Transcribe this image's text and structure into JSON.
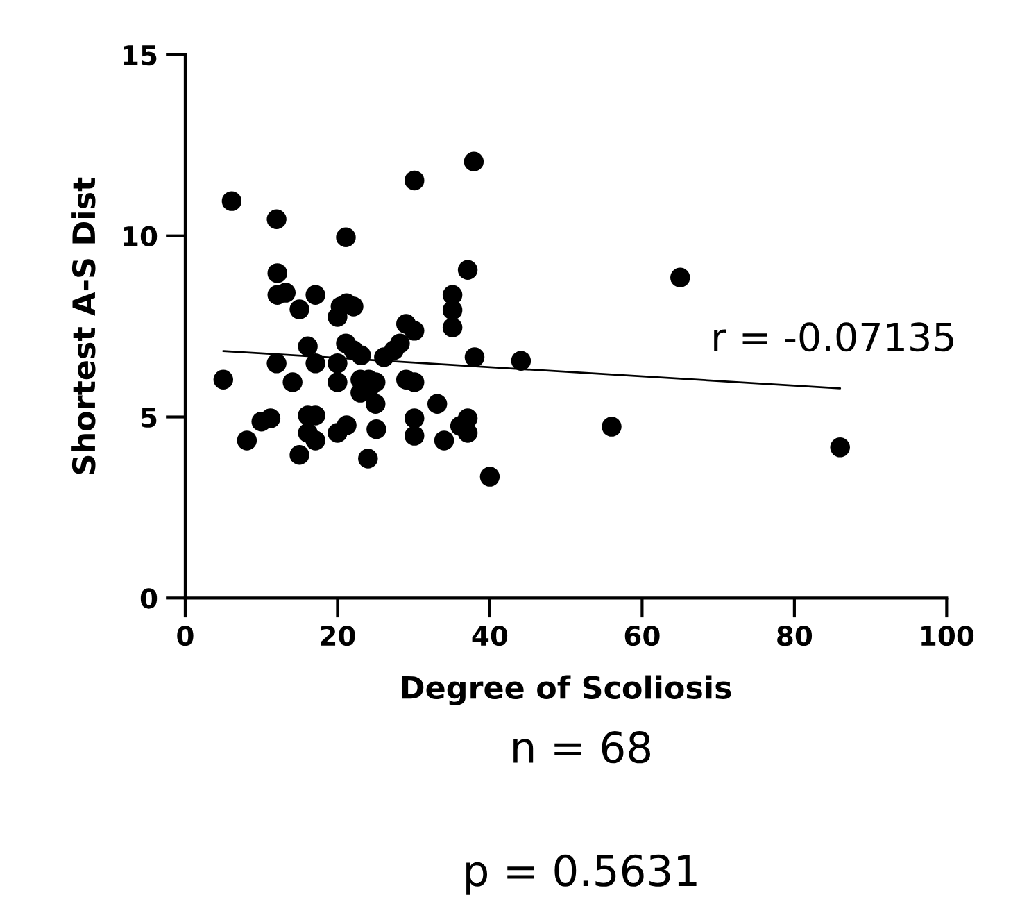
{
  "chart_data": {
    "type": "scatter",
    "xlabel": "Degree of Scoliosis",
    "ylabel": "Shortest A-S Dist",
    "xlim": [
      0,
      100
    ],
    "ylim": [
      0,
      15
    ],
    "xticks": [
      0,
      20,
      40,
      60,
      80,
      100
    ],
    "yticks": [
      0,
      5,
      10,
      15
    ],
    "grid": false,
    "marker": "circle",
    "series": [
      {
        "color": "#000000",
        "x": [
          5,
          6.1,
          8.1,
          10,
          11.2,
          12,
          12.1,
          12.1,
          13.2,
          12,
          14.1,
          15,
          15,
          16.1,
          17.1,
          17.1,
          16.1,
          17.1,
          16.1,
          17.1,
          20,
          20,
          20,
          20.4,
          21.2,
          22.1,
          21.1,
          21.1,
          22.1,
          23.1,
          20,
          21.2,
          23,
          23,
          24.1,
          24.1,
          25,
          25,
          25.1,
          24,
          26.1,
          27.4,
          28.2,
          29,
          30.1,
          29,
          30.1,
          30.1,
          30.1,
          30.1,
          33.1,
          34,
          35.1,
          35.1,
          35.1,
          37.1,
          36.1,
          37.1,
          37.1,
          37.9,
          38,
          40,
          44.1,
          56,
          65,
          86
        ],
        "values": [
          6.03,
          10.96,
          4.35,
          4.87,
          4.96,
          10.46,
          8.97,
          8.37,
          8.43,
          6.48,
          5.96,
          7.97,
          3.95,
          6.95,
          8.37,
          6.48,
          5.04,
          5.04,
          4.56,
          4.35,
          5.96,
          6.48,
          7.76,
          8.05,
          8.14,
          8.05,
          9.96,
          7.03,
          6.84,
          6.7,
          4.56,
          4.77,
          6.03,
          5.67,
          6.03,
          5.77,
          5.96,
          5.36,
          4.66,
          3.85,
          6.65,
          6.84,
          7.03,
          7.57,
          7.38,
          6.03,
          5.96,
          11.53,
          4.96,
          4.48,
          5.36,
          4.35,
          8.37,
          7.95,
          7.47,
          9.06,
          4.75,
          4.96,
          4.56,
          12.05,
          6.65,
          3.35,
          6.55,
          4.73,
          8.85,
          4.16
        ]
      },
      {
        "type": "line",
        "color": "#000000",
        "marker": "none",
        "line_style": "solid",
        "x": [
          5,
          86
        ],
        "values": [
          6.82,
          5.79
        ]
      }
    ],
    "annotations": [
      "r = -0.07135",
      "n = 68",
      "p = 0.5631"
    ]
  }
}
